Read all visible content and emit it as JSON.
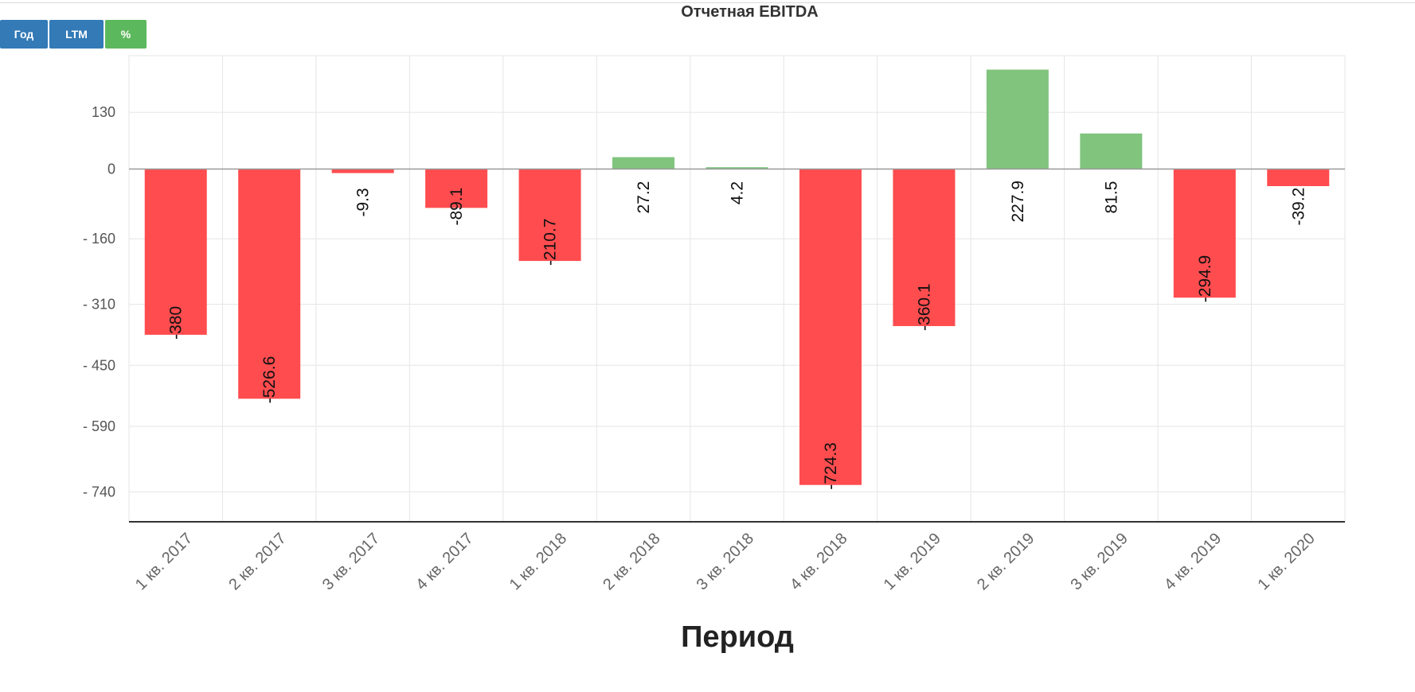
{
  "toolbar": {
    "year_label": "Год",
    "ltm_label": "LTM",
    "percent_label": "%"
  },
  "colors": {
    "negative": "#ff4c4f",
    "positive": "#80c47e",
    "button_blue": "#337ab7",
    "button_green": "#5cb85c"
  },
  "chart_data": {
    "type": "bar",
    "title": "Отчетная EBITDA",
    "xlabel": "Период",
    "ylabel": "",
    "categories": [
      "1 кв. 2017",
      "2 кв. 2017",
      "3 кв. 2017",
      "4 кв. 2017",
      "1 кв. 2018",
      "2 кв. 2018",
      "3 кв. 2018",
      "4 кв. 2018",
      "1 кв. 2019",
      "2 кв. 2019",
      "3 кв. 2019",
      "4 кв. 2019",
      "1 кв. 2020"
    ],
    "values": [
      -380,
      -526.6,
      -9.3,
      -89.1,
      -210.7,
      27.2,
      4.2,
      -724.3,
      -360.1,
      227.9,
      81.5,
      -294.9,
      -39.2
    ],
    "value_labels": [
      "-380",
      "-526.6",
      "-9.3",
      "-89.1",
      "-210.7",
      "27.2",
      "4.2",
      "-724.3",
      "-360.1",
      "227.9",
      "81.5",
      "-294.9",
      "-39.2"
    ],
    "yticks": [
      130,
      0,
      -160,
      -310,
      -450,
      -590,
      -740
    ],
    "ytick_labels": [
      "130",
      "0",
      "- 160",
      "- 310",
      "- 450",
      "- 590",
      "- 740"
    ],
    "ylim": [
      -790,
      253
    ],
    "grid": true,
    "legend": "none"
  }
}
